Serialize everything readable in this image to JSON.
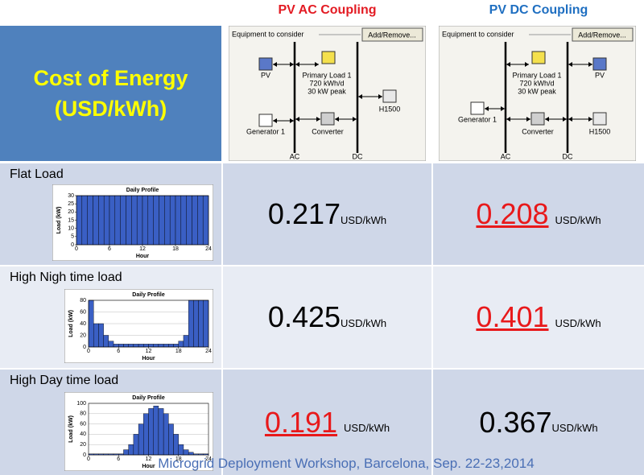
{
  "columns": [
    {
      "title": "PV AC Coupling",
      "color": "#e31b23"
    },
    {
      "title": "PV DC Coupling",
      "color": "#1f6fc1"
    }
  ],
  "header": {
    "title_lines": [
      "Cost of Energy",
      "(USD/kWh)"
    ]
  },
  "diagrams": [
    {
      "equipment": "Equipment to consider",
      "button": "Add/Remove...",
      "components": {
        "pv": "PV",
        "load": [
          "Primary Load 1",
          "720 kWh/d",
          "30 kW peak"
        ],
        "battery": "H1500",
        "generator": "Generator 1",
        "converter": "Converter"
      },
      "buses": [
        "AC",
        "DC"
      ]
    },
    {
      "equipment": "Equipment to consider",
      "button": "Add/Remove...",
      "components": {
        "pv": "PV",
        "load": [
          "Primary Load 1",
          "720 kWh/d",
          "30 kW peak"
        ],
        "battery": "H1500",
        "generator": "Generator 1",
        "converter": "Converter"
      },
      "buses": [
        "AC",
        "DC"
      ]
    }
  ],
  "rows": [
    {
      "label": "Flat Load",
      "ac": {
        "value": 0.217,
        "unit": "USD/kWh",
        "color": "#000000",
        "underline": false
      },
      "dc": {
        "value": 0.208,
        "unit": "USD/kWh",
        "color": "#e8191b",
        "underline": true
      },
      "profile": {
        "type": "bar",
        "title": "Daily Profile",
        "x_label": "Hour",
        "y_label": "Load (kW)",
        "color": "#3a5fc4",
        "grid": false,
        "bins": [
          0,
          1,
          2,
          3,
          4,
          5,
          6,
          7,
          8,
          9,
          10,
          11,
          12,
          13,
          14,
          15,
          16,
          17,
          18,
          19,
          20,
          21,
          22,
          23,
          24
        ],
        "values": [
          30,
          30,
          30,
          30,
          30,
          30,
          30,
          30,
          30,
          30,
          30,
          30,
          30,
          30,
          30,
          30,
          30,
          30,
          30,
          30,
          30,
          30,
          30,
          30
        ],
        "xlim": [
          0,
          24
        ],
        "xticks": [
          0,
          6,
          12,
          18,
          24
        ],
        "ylim": [
          0,
          30
        ],
        "yticks": [
          0,
          5,
          10,
          15,
          20,
          25,
          30
        ]
      }
    },
    {
      "label": "High Nigh time load",
      "ac": {
        "value": 0.425,
        "unit": "USD/kWh",
        "color": "#000000",
        "underline": false
      },
      "dc": {
        "value": 0.401,
        "unit": "USD/kWh",
        "color": "#e8191b",
        "underline": true
      },
      "profile": {
        "type": "bar",
        "title": "Daily Profile",
        "x_label": "Hour",
        "y_label": "Load (kW)",
        "color": "#3a5fc4",
        "grid": true,
        "bins": [
          0,
          1,
          2,
          3,
          4,
          5,
          6,
          7,
          8,
          9,
          10,
          11,
          12,
          13,
          14,
          15,
          16,
          17,
          18,
          19,
          20,
          21,
          22,
          23,
          24
        ],
        "values": [
          80,
          40,
          40,
          20,
          10,
          5,
          5,
          5,
          5,
          5,
          5,
          5,
          5,
          5,
          5,
          5,
          5,
          5,
          10,
          20,
          80,
          80,
          80,
          80
        ],
        "xlim": [
          0,
          24
        ],
        "xticks": [
          0,
          6,
          12,
          18,
          24
        ],
        "ylim": [
          0,
          80
        ],
        "yticks": [
          0,
          20,
          40,
          60,
          80
        ]
      }
    },
    {
      "label": "High Day time load",
      "ac": {
        "value": 0.191,
        "unit": "USD/kWh",
        "color": "#e8191b",
        "underline": true
      },
      "dc": {
        "value": 0.367,
        "unit": "USD/kWh",
        "color": "#000000",
        "underline": false
      },
      "profile": {
        "type": "bar",
        "title": "Daily Profile",
        "x_label": "Hour",
        "y_label": "Load (kW)",
        "color": "#3a5fc4",
        "grid": true,
        "bins": [
          0,
          1,
          2,
          3,
          4,
          5,
          6,
          7,
          8,
          9,
          10,
          11,
          12,
          13,
          14,
          15,
          16,
          17,
          18,
          19,
          20,
          21,
          22,
          23,
          24
        ],
        "values": [
          2,
          2,
          2,
          2,
          2,
          2,
          2,
          10,
          20,
          40,
          60,
          80,
          90,
          95,
          90,
          80,
          60,
          40,
          20,
          10,
          5,
          2,
          2,
          2
        ],
        "xlim": [
          0,
          24
        ],
        "xticks": [
          0,
          6,
          12,
          18,
          24
        ],
        "ylim": [
          0,
          100
        ],
        "yticks": [
          0,
          20,
          40,
          60,
          80,
          100
        ]
      }
    }
  ],
  "footer": "Microgrid Deployment Workshop, Barcelona, Sep. 22-23,2014"
}
